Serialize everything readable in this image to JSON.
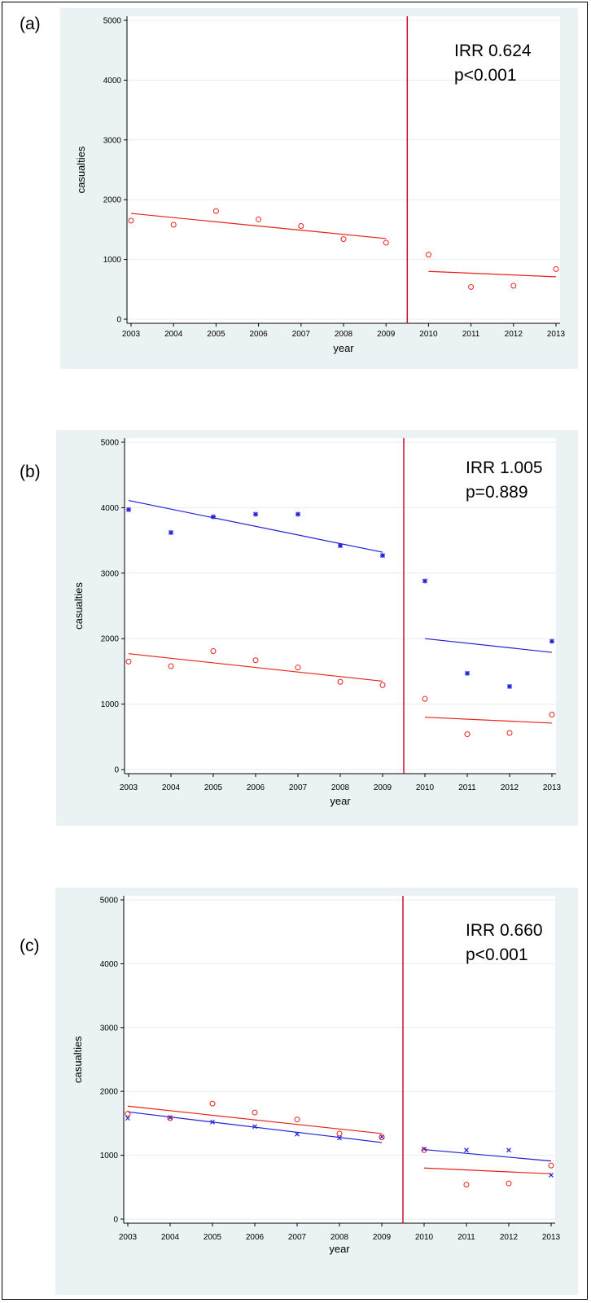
{
  "chart_data": [
    {
      "type": "scatter",
      "panel_label": "(a)",
      "xlabel": "year",
      "ylabel": "casualties",
      "x_ticks": [
        2003,
        2004,
        2005,
        2006,
        2007,
        2008,
        2009,
        2010,
        2011,
        2012,
        2013
      ],
      "y_ticks": [
        0,
        1000,
        2000,
        3000,
        4000,
        5000
      ],
      "xlim": [
        2003,
        2013
      ],
      "ylim": [
        0,
        5000
      ],
      "grid": true,
      "intervention_x": 2009.5,
      "annotation": [
        "IRR 0.624",
        "p<0.001"
      ],
      "series": [
        {
          "color": "#e8201c",
          "marker": "circle",
          "points": [
            [
              2003,
              1650
            ],
            [
              2004,
              1580
            ],
            [
              2005,
              1810
            ],
            [
              2006,
              1670
            ],
            [
              2007,
              1560
            ],
            [
              2008,
              1340
            ],
            [
              2009,
              1280
            ],
            [
              2010,
              1080
            ],
            [
              2011,
              540
            ],
            [
              2012,
              560
            ],
            [
              2013,
              840
            ]
          ],
          "fit_pre": [
            [
              2003,
              1770
            ],
            [
              2009,
              1350
            ]
          ],
          "fit_post": [
            [
              2010,
              800
            ],
            [
              2013,
              710
            ]
          ]
        }
      ]
    },
    {
      "type": "scatter",
      "panel_label": "(b)",
      "xlabel": "year",
      "ylabel": "casualties",
      "x_ticks": [
        2003,
        2004,
        2005,
        2006,
        2007,
        2008,
        2009,
        2010,
        2011,
        2012,
        2013
      ],
      "y_ticks": [
        0,
        1000,
        2000,
        3000,
        4000,
        5000
      ],
      "xlim": [
        2003,
        2013
      ],
      "ylim": [
        0,
        5000
      ],
      "grid": true,
      "intervention_x": 2009.5,
      "annotation": [
        "IRR 1.005",
        "p=0.889"
      ],
      "series": [
        {
          "color": "#1f1fd6",
          "marker": "asterisk",
          "points": [
            [
              2003,
              3970
            ],
            [
              2004,
              3620
            ],
            [
              2005,
              3860
            ],
            [
              2006,
              3900
            ],
            [
              2007,
              3900
            ],
            [
              2008,
              3420
            ],
            [
              2009,
              3270
            ],
            [
              2010,
              2880
            ],
            [
              2011,
              1470
            ],
            [
              2012,
              1270
            ],
            [
              2013,
              1960
            ]
          ],
          "fit_pre": [
            [
              2003,
              4110
            ],
            [
              2009,
              3320
            ]
          ],
          "fit_post": [
            [
              2010,
              2000
            ],
            [
              2013,
              1790
            ]
          ]
        },
        {
          "color": "#e8201c",
          "marker": "circle",
          "points": [
            [
              2003,
              1650
            ],
            [
              2004,
              1580
            ],
            [
              2005,
              1810
            ],
            [
              2006,
              1670
            ],
            [
              2007,
              1560
            ],
            [
              2008,
              1340
            ],
            [
              2009,
              1290
            ],
            [
              2010,
              1080
            ],
            [
              2011,
              540
            ],
            [
              2012,
              560
            ],
            [
              2013,
              840
            ]
          ],
          "fit_pre": [
            [
              2003,
              1770
            ],
            [
              2009,
              1350
            ]
          ],
          "fit_post": [
            [
              2010,
              800
            ],
            [
              2013,
              710
            ]
          ]
        }
      ]
    },
    {
      "type": "scatter",
      "panel_label": "(c)",
      "xlabel": "year",
      "ylabel": "casualties",
      "x_ticks": [
        2003,
        2004,
        2005,
        2006,
        2007,
        2008,
        2009,
        2010,
        2011,
        2012,
        2013
      ],
      "y_ticks": [
        0,
        1000,
        2000,
        3000,
        4000,
        5000
      ],
      "xlim": [
        2003,
        2013
      ],
      "ylim": [
        0,
        5000
      ],
      "grid": true,
      "intervention_x": 2009.5,
      "annotation": [
        "IRR 0.660",
        "p<0.001"
      ],
      "series": [
        {
          "color": "#1f1fd6",
          "marker": "x",
          "points": [
            [
              2003,
              1580
            ],
            [
              2004,
              1590
            ],
            [
              2005,
              1520
            ],
            [
              2006,
              1450
            ],
            [
              2007,
              1330
            ],
            [
              2008,
              1270
            ],
            [
              2009,
              1290
            ],
            [
              2010,
              1100
            ],
            [
              2011,
              1080
            ],
            [
              2012,
              1080
            ],
            [
              2013,
              690
            ]
          ],
          "fit_pre": [
            [
              2003,
              1680
            ],
            [
              2009,
              1200
            ]
          ],
          "fit_post": [
            [
              2010,
              1090
            ],
            [
              2013,
              910
            ]
          ]
        },
        {
          "color": "#e8201c",
          "marker": "circle",
          "points": [
            [
              2003,
              1650
            ],
            [
              2004,
              1580
            ],
            [
              2005,
              1810
            ],
            [
              2006,
              1670
            ],
            [
              2007,
              1560
            ],
            [
              2008,
              1340
            ],
            [
              2009,
              1280
            ],
            [
              2010,
              1080
            ],
            [
              2011,
              540
            ],
            [
              2012,
              560
            ],
            [
              2013,
              840
            ]
          ],
          "fit_pre": [
            [
              2003,
              1770
            ],
            [
              2009,
              1340
            ]
          ],
          "fit_post": [
            [
              2010,
              800
            ],
            [
              2013,
              710
            ]
          ]
        }
      ]
    }
  ]
}
